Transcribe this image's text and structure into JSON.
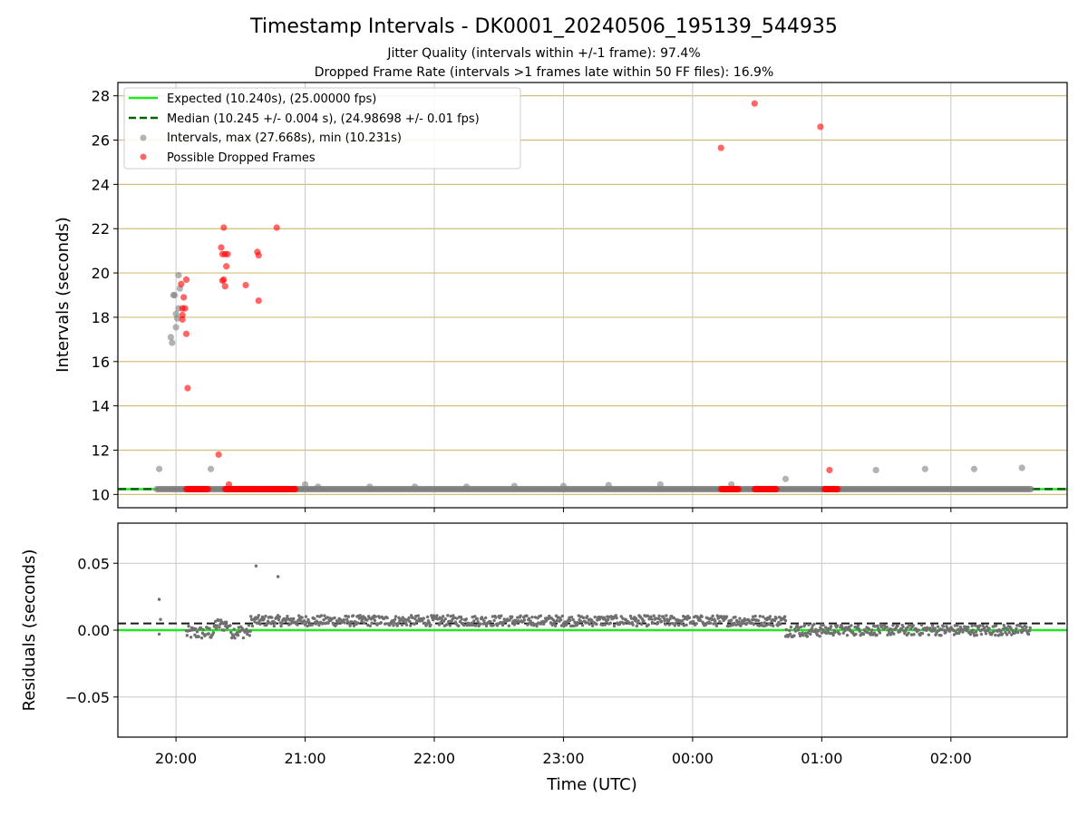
{
  "chart_data": [
    {
      "type": "scatter",
      "title": "Timestamp Intervals - DK0001_20240506_195139_544935",
      "subtitle_lines": [
        "Jitter Quality (intervals within +/-1 frame): 97.4%",
        "Dropped Frame Rate (intervals >1 frames late within 50 FF files): 16.9%"
      ],
      "xlabel": "",
      "ylabel": "Intervals (seconds)",
      "x_unit": "hours from 20:00 UTC",
      "xlim": [
        -0.45,
        6.9
      ],
      "ylim": [
        9.4,
        28.6
      ],
      "yticks": [
        10,
        12,
        14,
        16,
        18,
        20,
        22,
        24,
        26,
        28
      ],
      "xtick_positions": [
        0,
        1,
        2,
        3,
        4,
        5,
        6
      ],
      "xtick_labels": [
        "20:00",
        "21:00",
        "22:00",
        "23:00",
        "00:00",
        "01:00",
        "02:00"
      ],
      "grid": "on",
      "legend_position": "upper-left",
      "expected_value": 10.24,
      "median_value": 10.245,
      "series": [
        {
          "name": "Expected (10.240s), (25.00000 fps)",
          "kind": "hline",
          "color": "#1ee81e"
        },
        {
          "name": "Median (10.245 +/- 0.004 s), (24.98698 +/- 0.01 fps)",
          "kind": "hline-dashed",
          "color": "#006400"
        },
        {
          "name": "Intervals, max (27.668s), min (10.231s)",
          "kind": "scatter",
          "color": "#808080",
          "band": {
            "x_start": -0.15,
            "x_end": 6.62,
            "y": 10.24
          },
          "points": [
            [
              -0.13,
              11.15
            ],
            [
              -0.04,
              17.1
            ],
            [
              -0.03,
              16.85
            ],
            [
              -0.02,
              19.0
            ],
            [
              -0.01,
              19.0
            ],
            [
              0.0,
              17.55
            ],
            [
              0.0,
              18.15
            ],
            [
              0.01,
              17.95
            ],
            [
              0.02,
              19.9
            ],
            [
              0.02,
              18.4
            ],
            [
              0.03,
              19.3
            ],
            [
              0.27,
              11.15
            ],
            [
              1.0,
              10.45
            ],
            [
              1.1,
              10.35
            ],
            [
              1.5,
              10.35
            ],
            [
              1.85,
              10.35
            ],
            [
              2.25,
              10.35
            ],
            [
              2.62,
              10.38
            ],
            [
              3.0,
              10.38
            ],
            [
              3.35,
              10.42
            ],
            [
              3.75,
              10.45
            ],
            [
              4.3,
              10.45
            ],
            [
              4.72,
              10.7
            ],
            [
              5.42,
              11.1
            ],
            [
              5.8,
              11.15
            ],
            [
              6.18,
              11.15
            ],
            [
              6.55,
              11.2
            ]
          ]
        },
        {
          "name": "Possible Dropped Frames",
          "kind": "scatter",
          "color": "#ff0000",
          "bands": [
            {
              "x_start": 0.08,
              "x_end": 0.25,
              "y": 10.24
            },
            {
              "x_start": 0.38,
              "x_end": 0.93,
              "y": 10.24
            },
            {
              "x_start": 4.22,
              "x_end": 4.36,
              "y": 10.24
            },
            {
              "x_start": 4.48,
              "x_end": 4.65,
              "y": 10.24
            },
            {
              "x_start": 5.02,
              "x_end": 5.13,
              "y": 10.24
            }
          ],
          "points": [
            [
              0.04,
              19.5
            ],
            [
              0.05,
              18.4
            ],
            [
              0.05,
              18.1
            ],
            [
              0.05,
              17.9
            ],
            [
              0.06,
              18.9
            ],
            [
              0.07,
              18.4
            ],
            [
              0.08,
              19.7
            ],
            [
              0.08,
              17.25
            ],
            [
              0.09,
              14.8
            ],
            [
              0.33,
              11.8
            ],
            [
              0.35,
              21.15
            ],
            [
              0.36,
              20.85
            ],
            [
              0.37,
              22.05
            ],
            [
              0.36,
              19.65
            ],
            [
              0.37,
              19.7
            ],
            [
              0.38,
              19.4
            ],
            [
              0.38,
              20.85
            ],
            [
              0.39,
              20.3
            ],
            [
              0.4,
              20.85
            ],
            [
              0.41,
              10.45
            ],
            [
              0.54,
              19.45
            ],
            [
              0.63,
              20.95
            ],
            [
              0.64,
              20.8
            ],
            [
              0.64,
              18.75
            ],
            [
              0.78,
              22.05
            ],
            [
              4.22,
              25.65
            ],
            [
              4.48,
              27.65
            ],
            [
              4.99,
              26.6
            ],
            [
              5.06,
              11.1
            ]
          ]
        }
      ],
      "legend_entries": [
        "Expected (10.240s), (25.00000 fps)",
        "Median (10.245 +/- 0.004 s), (24.98698 +/- 0.01 fps)",
        "Intervals, max (27.668s), min (10.231s)",
        "Possible Dropped Frames"
      ]
    },
    {
      "type": "scatter",
      "xlabel": "Time (UTC)",
      "ylabel": "Residuals (seconds)",
      "xlim": [
        -0.45,
        6.9
      ],
      "ylim": [
        -0.08,
        0.08
      ],
      "yticks": [
        0.05,
        0.0,
        -0.05
      ],
      "ytick_labels": [
        "0.05",
        "0.00",
        "−0.05"
      ],
      "xtick_positions": [
        0,
        1,
        2,
        3,
        4,
        5,
        6
      ],
      "xtick_labels": [
        "20:00",
        "21:00",
        "22:00",
        "23:00",
        "00:00",
        "01:00",
        "02:00"
      ],
      "grid": "on",
      "expected_residual": 0.0,
      "median_residual": 0.005,
      "series": [
        {
          "name": "",
          "kind": "scatter",
          "color": "#707070",
          "points": [
            [
              -0.13,
              0.023
            ],
            [
              -0.12,
              0.008
            ],
            [
              -0.13,
              -0.003
            ],
            [
              0.62,
              0.048
            ],
            [
              0.79,
              0.04
            ]
          ],
          "band_segments": [
            {
              "x_start": 0.08,
              "x_end": 0.3,
              "center": -0.002,
              "spread": 0.005
            },
            {
              "x_start": 0.3,
              "x_end": 0.42,
              "center": 0.004,
              "spread": 0.005
            },
            {
              "x_start": 0.42,
              "x_end": 0.58,
              "center": -0.001,
              "spread": 0.005
            },
            {
              "x_start": 0.58,
              "x_end": 4.72,
              "center": 0.007,
              "spread": 0.004
            },
            {
              "x_start": 4.72,
              "x_end": 5.0,
              "center": 0.0,
              "spread": 0.005
            },
            {
              "x_start": 5.0,
              "x_end": 6.62,
              "center": 0.0,
              "spread": 0.004
            }
          ]
        }
      ]
    }
  ]
}
